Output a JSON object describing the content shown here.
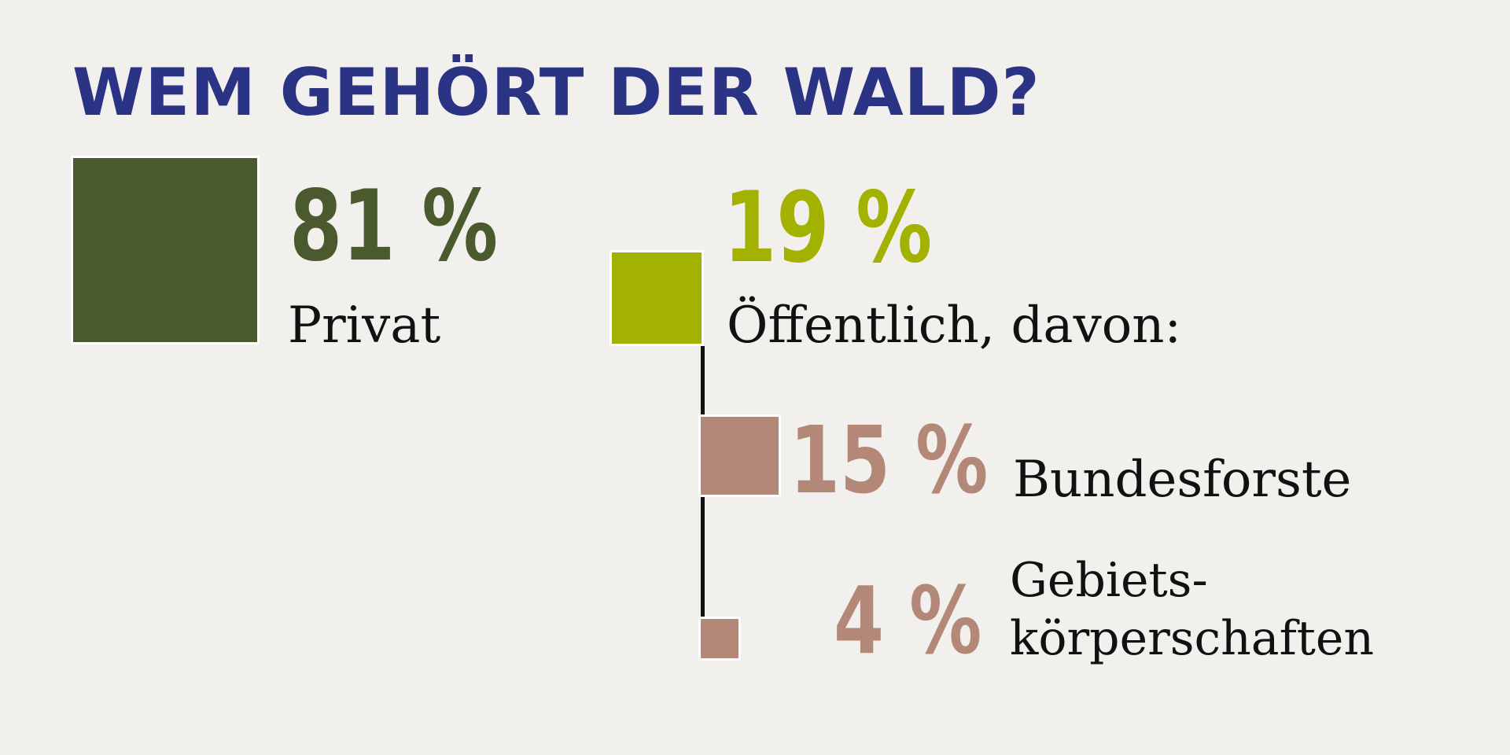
{
  "chart_data": {
    "type": "treemap-squares",
    "title": "WEM GEHÖRT DER WALD?",
    "unit": "%",
    "segments": [
      {
        "id": "privat",
        "value": 81,
        "value_text": "81 %",
        "label": "Privat",
        "color": "#4b5a2e"
      },
      {
        "id": "oeffentlich",
        "value": 19,
        "value_text": "19 %",
        "label": "Öffentlich, davon:",
        "color": "#a3b200",
        "children": [
          {
            "id": "bundesforste",
            "value": 15,
            "value_text": "15 %",
            "label": "Bundesforste",
            "color": "#b38878"
          },
          {
            "id": "gebiets",
            "value": 4,
            "value_text": "4 %",
            "label_lines": [
              "Gebiets-",
              "körperschaften"
            ],
            "color": "#b38878"
          }
        ]
      }
    ]
  },
  "colors": {
    "background": "#f2f0ed",
    "title": "#2b3384",
    "label_text": "#111111",
    "connector": "#111111",
    "square_border": "#ffffff"
  }
}
